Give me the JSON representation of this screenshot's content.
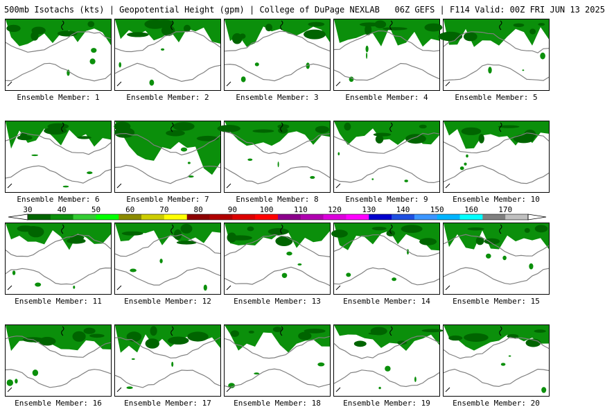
{
  "header": {
    "title": "500mb Isotachs (kts) | Geopotential Height (gpm) | College of DuPage NEXLAB   06Z GEFS | F114 Valid: 00Z FRI JUN 13 2025"
  },
  "members": [
    {
      "label": "Ensemble Member: 1"
    },
    {
      "label": "Ensemble Member: 2"
    },
    {
      "label": "Ensemble Member: 3"
    },
    {
      "label": "Ensemble Member: 4"
    },
    {
      "label": "Ensemble Member: 5"
    },
    {
      "label": "Ensemble Member: 6"
    },
    {
      "label": "Ensemble Member: 7"
    },
    {
      "label": "Ensemble Member: 8"
    },
    {
      "label": "Ensemble Member: 9"
    },
    {
      "label": "Ensemble Member: 10"
    },
    {
      "label": "Ensemble Member: 11"
    },
    {
      "label": "Ensemble Member: 12"
    },
    {
      "label": "Ensemble Member: 13"
    },
    {
      "label": "Ensemble Member: 14"
    },
    {
      "label": "Ensemble Member: 15"
    },
    {
      "label": "Ensemble Member: 16"
    },
    {
      "label": "Ensemble Member: 17"
    },
    {
      "label": "Ensemble Member: 18"
    },
    {
      "label": "Ensemble Member: 19"
    },
    {
      "label": "Ensemble Member: 20"
    }
  ],
  "colorbar": {
    "ticks": [
      "30",
      "40",
      "50",
      "60",
      "70",
      "80",
      "90",
      "100",
      "110",
      "120",
      "130",
      "140",
      "150",
      "160",
      "170"
    ],
    "colors": [
      "#006400",
      "#0b8f0b",
      "#33cc33",
      "#00ff00",
      "#8b8b00",
      "#cdcd00",
      "#ffff00",
      "#8b0000",
      "#b00000",
      "#dc0000",
      "#ff0000",
      "#8b008b",
      "#b000b0",
      "#dc00dc",
      "#ff00ff",
      "#0000cd",
      "#1e4fe0",
      "#3c96ff",
      "#00b4ff",
      "#00ffff",
      "#808080",
      "#c0c0c0"
    ]
  },
  "colors": {
    "isotach_dark": "#006400",
    "isotach_mid": "#0b8f0b",
    "isotach_light": "#33cc33",
    "height_contour": "#808080",
    "coastline": "#000000"
  }
}
